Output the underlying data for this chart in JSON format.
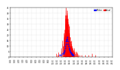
{
  "background_color": "#ffffff",
  "plot_bg_color": "#ffffff",
  "grid_color": "#c0c0c0",
  "actual_color": "#ff0000",
  "median_color": "#0000ff",
  "ylim": [
    0,
    45
  ],
  "num_minutes": 1440,
  "legend_actual": "Actual",
  "legend_median": "Median",
  "tick_positions": [
    0,
    60,
    120,
    180,
    240,
    300,
    360,
    420,
    480,
    540,
    600,
    660,
    720,
    780,
    840,
    900,
    960,
    1020,
    1080,
    1140,
    1200,
    1260,
    1320,
    1380,
    1439
  ],
  "yticks": [
    0,
    5,
    10,
    15,
    20,
    25,
    30,
    35,
    40,
    45
  ],
  "spike_data": [
    [
      650,
      3
    ],
    [
      660,
      2
    ],
    [
      670,
      4
    ],
    [
      690,
      2
    ],
    [
      710,
      5
    ],
    [
      715,
      8
    ],
    [
      730,
      12
    ],
    [
      735,
      15
    ],
    [
      740,
      10
    ],
    [
      750,
      18
    ],
    [
      753,
      22
    ],
    [
      756,
      16
    ],
    [
      760,
      20
    ],
    [
      765,
      25
    ],
    [
      768,
      30
    ],
    [
      771,
      35
    ],
    [
      774,
      38
    ],
    [
      777,
      42
    ],
    [
      780,
      38
    ],
    [
      782,
      32
    ],
    [
      784,
      45
    ],
    [
      786,
      40
    ],
    [
      788,
      35
    ],
    [
      790,
      30
    ],
    [
      792,
      38
    ],
    [
      794,
      28
    ],
    [
      796,
      32
    ],
    [
      798,
      35
    ],
    [
      800,
      40
    ],
    [
      802,
      42
    ],
    [
      804,
      38
    ],
    [
      806,
      30
    ],
    [
      808,
      35
    ],
    [
      810,
      28
    ],
    [
      812,
      32
    ],
    [
      814,
      25
    ],
    [
      816,
      30
    ],
    [
      818,
      22
    ],
    [
      820,
      18
    ],
    [
      822,
      20
    ],
    [
      824,
      25
    ],
    [
      826,
      28
    ],
    [
      828,
      22
    ],
    [
      830,
      18
    ],
    [
      832,
      15
    ],
    [
      834,
      20
    ],
    [
      836,
      18
    ],
    [
      838,
      12
    ],
    [
      840,
      15
    ],
    [
      842,
      18
    ],
    [
      844,
      12
    ],
    [
      846,
      10
    ],
    [
      848,
      14
    ],
    [
      850,
      10
    ],
    [
      852,
      8
    ],
    [
      854,
      12
    ],
    [
      856,
      8
    ],
    [
      858,
      10
    ],
    [
      860,
      15
    ],
    [
      862,
      12
    ],
    [
      864,
      8
    ],
    [
      866,
      10
    ],
    [
      868,
      6
    ],
    [
      870,
      8
    ],
    [
      872,
      5
    ],
    [
      874,
      8
    ],
    [
      876,
      6
    ],
    [
      880,
      5
    ],
    [
      885,
      4
    ],
    [
      890,
      6
    ],
    [
      895,
      4
    ],
    [
      900,
      8
    ],
    [
      910,
      5
    ],
    [
      920,
      3
    ],
    [
      930,
      5
    ],
    [
      940,
      4
    ],
    [
      950,
      3
    ],
    [
      960,
      2
    ],
    [
      980,
      2
    ],
    [
      1000,
      2
    ],
    [
      1050,
      2
    ],
    [
      1100,
      2
    ],
    [
      1150,
      3
    ],
    [
      1200,
      2
    ]
  ],
  "median_data": [
    [
      750,
      3
    ],
    [
      755,
      4
    ],
    [
      760,
      5
    ],
    [
      765,
      6
    ],
    [
      770,
      8
    ],
    [
      775,
      10
    ],
    [
      780,
      12
    ],
    [
      785,
      14
    ],
    [
      790,
      15
    ],
    [
      795,
      16
    ],
    [
      800,
      18
    ],
    [
      805,
      16
    ],
    [
      810,
      14
    ],
    [
      815,
      12
    ],
    [
      820,
      10
    ],
    [
      825,
      8
    ],
    [
      830,
      7
    ],
    [
      835,
      6
    ],
    [
      840,
      5
    ],
    [
      845,
      4
    ],
    [
      850,
      4
    ],
    [
      855,
      3
    ],
    [
      860,
      3
    ],
    [
      865,
      3
    ],
    [
      870,
      2
    ],
    [
      875,
      2
    ],
    [
      880,
      2
    ],
    [
      885,
      2
    ],
    [
      690,
      2
    ],
    [
      710,
      2
    ],
    [
      730,
      3
    ]
  ]
}
